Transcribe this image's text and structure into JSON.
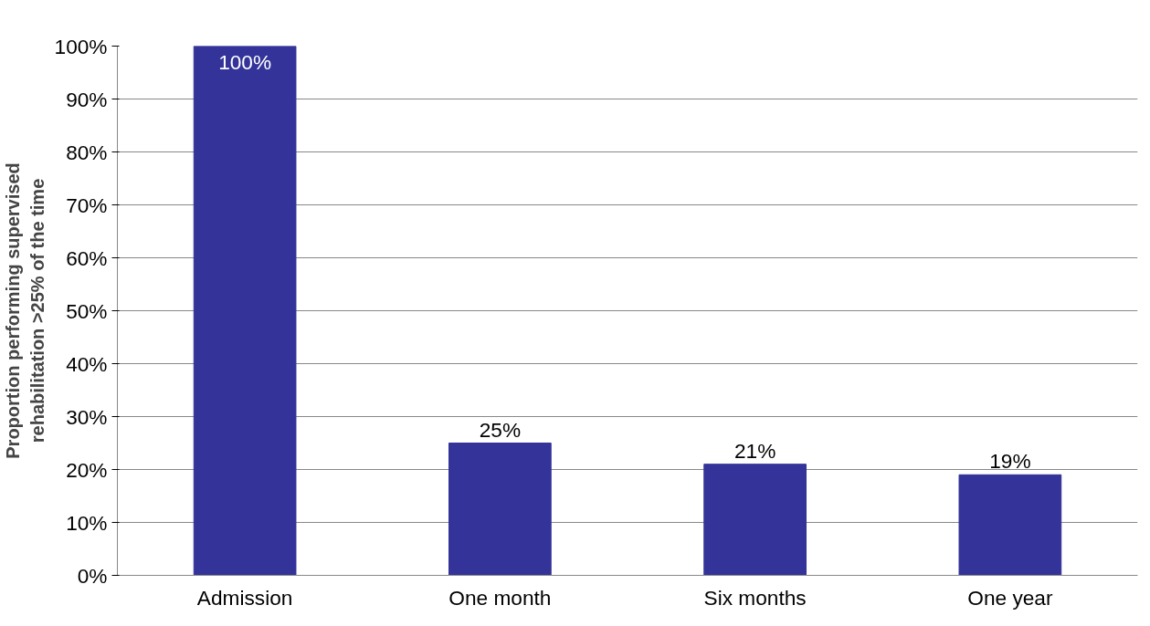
{
  "chart_data": {
    "type": "bar",
    "ylabel": "Proportion performing supervised\nrehabilitation >25% of the time",
    "categories": [
      "Admission",
      "One month",
      "Six months",
      "One year"
    ],
    "values": [
      100,
      25,
      21,
      19
    ],
    "value_labels": [
      "100%",
      "25%",
      "21%",
      "19%"
    ],
    "color": "#333399",
    "ylim": [
      0,
      100
    ],
    "yticks": [
      {
        "value": 0,
        "label": "0%"
      },
      {
        "value": 10,
        "label": "10%"
      },
      {
        "value": 20,
        "label": "20%"
      },
      {
        "value": 30,
        "label": "30%"
      },
      {
        "value": 40,
        "label": "40%"
      },
      {
        "value": 50,
        "label": "50%"
      },
      {
        "value": 60,
        "label": "60%"
      },
      {
        "value": 70,
        "label": "70%"
      },
      {
        "value": 80,
        "label": "80%"
      },
      {
        "value": 90,
        "label": "90%"
      },
      {
        "value": 100,
        "label": "100%"
      }
    ],
    "grid": "y"
  }
}
